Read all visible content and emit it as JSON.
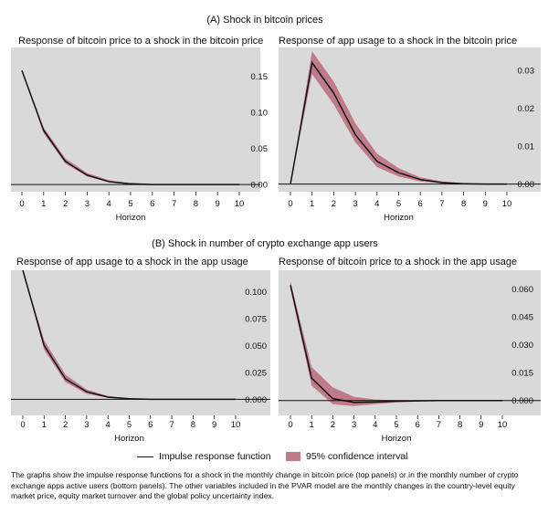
{
  "colors": {
    "panel_bg": "#d9d9d9",
    "ci_fill": "#c07a8a",
    "line": "#111111"
  },
  "sections": [
    {
      "heading": "(A)  Shock in bitcoin prices"
    },
    {
      "heading": "(B) Shock in number of crypto exchange app users"
    }
  ],
  "legend": {
    "line_label": "Impulse response function",
    "band_label": "95% confidence interval"
  },
  "note": "The graphs show the impulse response functions for a shock in the monthly change in bitcoin price (top panels) or in the monthly number of crypto exchange apps active users (bottom panels). The other variables included in the PVAR model are the monthly changes in the country-level equity market price, equity market turnover and the global policy uncertainty index.",
  "chart_data": [
    {
      "type": "line",
      "title": "Response of bitcoin price to a shock in the bitcoin price",
      "xlabel": "Horizon",
      "x": [
        0,
        1,
        2,
        3,
        4,
        5,
        6,
        7,
        8,
        9,
        10
      ],
      "xticks": [
        "0",
        "1",
        "2",
        "3",
        "4",
        "5",
        "6",
        "7",
        "8",
        "9",
        "10"
      ],
      "ylim": [
        -0.01,
        0.19
      ],
      "yticks": [
        0.0,
        0.05,
        0.1,
        0.15
      ],
      "ytick_labels": [
        "0.00",
        "0.05",
        "0.10",
        "0.15"
      ],
      "series": [
        {
          "name": "Impulse response function",
          "values": [
            0.158,
            0.075,
            0.032,
            0.013,
            0.004,
            0.001,
            0.0,
            0.0,
            0.0,
            0.0,
            0.0
          ]
        },
        {
          "name": "95% confidence interval",
          "lower": [
            0.157,
            0.071,
            0.029,
            0.011,
            0.003,
            0.0005,
            0.0,
            0.0,
            0.0,
            0.0,
            0.0
          ],
          "upper": [
            0.159,
            0.079,
            0.036,
            0.016,
            0.006,
            0.0015,
            0.0003,
            0.0,
            0.0,
            0.0,
            0.0
          ]
        }
      ]
    },
    {
      "type": "line",
      "title": "Response of app usage to a shock in the bitcoin price",
      "xlabel": "Horizon",
      "x": [
        0,
        1,
        2,
        3,
        4,
        5,
        6,
        7,
        8,
        9,
        10
      ],
      "xticks": [
        "0",
        "1",
        "2",
        "3",
        "4",
        "5",
        "6",
        "7",
        "8",
        "9",
        "10"
      ],
      "ylim": [
        -0.002,
        0.036
      ],
      "yticks": [
        0.0,
        0.01,
        0.02,
        0.03
      ],
      "ytick_labels": [
        "0.00",
        "0.01",
        "0.02",
        "0.03"
      ],
      "series": [
        {
          "name": "Impulse response function",
          "values": [
            0.0,
            0.032,
            0.024,
            0.013,
            0.006,
            0.003,
            0.0012,
            0.0004,
            0.0001,
            0.0,
            0.0
          ]
        },
        {
          "name": "95% confidence interval",
          "lower": [
            0.0,
            0.029,
            0.021,
            0.011,
            0.0045,
            0.002,
            0.0007,
            0.0002,
            0.0,
            0.0,
            0.0
          ],
          "upper": [
            0.0,
            0.035,
            0.027,
            0.016,
            0.008,
            0.0042,
            0.0018,
            0.0007,
            0.0002,
            0.0001,
            0.0
          ]
        }
      ]
    },
    {
      "type": "line",
      "title": "Response of app usage to a shock in the app usage",
      "xlabel": "Horizon",
      "x": [
        0,
        1,
        2,
        3,
        4,
        5,
        6,
        7,
        8,
        9,
        10
      ],
      "xticks": [
        "0",
        "1",
        "2",
        "3",
        "4",
        "5",
        "6",
        "7",
        "8",
        "9",
        "10"
      ],
      "ylim": [
        -0.015,
        0.12
      ],
      "yticks": [
        0.0,
        0.025,
        0.05,
        0.075,
        0.1
      ],
      "ytick_labels": [
        "0.000",
        "0.025",
        "0.050",
        "0.075",
        "0.100"
      ],
      "series": [
        {
          "name": "Impulse response function",
          "values": [
            0.12,
            0.05,
            0.019,
            0.007,
            0.002,
            0.0005,
            0.0,
            0.0,
            0.0,
            0.0,
            0.0
          ]
        },
        {
          "name": "95% confidence interval",
          "lower": [
            0.12,
            0.046,
            0.016,
            0.005,
            0.0015,
            0.0003,
            0.0,
            0.0,
            0.0,
            0.0,
            0.0
          ],
          "upper": [
            0.12,
            0.055,
            0.023,
            0.009,
            0.003,
            0.0008,
            0.0002,
            0.0,
            0.0,
            0.0,
            0.0
          ]
        }
      ]
    },
    {
      "type": "line",
      "title": "Response of bitcoin price to a shock in the app usage",
      "xlabel": "Horizon",
      "x": [
        0,
        1,
        2,
        3,
        4,
        5,
        6,
        7,
        8,
        9,
        10
      ],
      "xticks": [
        "0",
        "1",
        "2",
        "3",
        "4",
        "5",
        "6",
        "7",
        "8",
        "9",
        "10"
      ],
      "ylim": [
        -0.008,
        0.07
      ],
      "yticks": [
        0.0,
        0.015,
        0.03,
        0.045,
        0.06
      ],
      "ytick_labels": [
        "0.000",
        "0.015",
        "0.030",
        "0.045",
        "0.060"
      ],
      "series": [
        {
          "name": "Impulse response function",
          "values": [
            0.062,
            0.012,
            0.001,
            -0.001,
            -0.0008,
            -0.0004,
            -0.0002,
            0.0,
            0.0,
            0.0,
            0.0
          ]
        },
        {
          "name": "95% confidence interval",
          "lower": [
            0.06,
            0.008,
            -0.002,
            -0.003,
            -0.002,
            -0.001,
            -0.0005,
            -0.0002,
            0.0,
            0.0,
            0.0
          ],
          "upper": [
            0.064,
            0.018,
            0.007,
            0.002,
            0.0005,
            0.0001,
            0.0,
            0.0,
            0.0,
            0.0,
            0.0
          ]
        }
      ]
    }
  ]
}
